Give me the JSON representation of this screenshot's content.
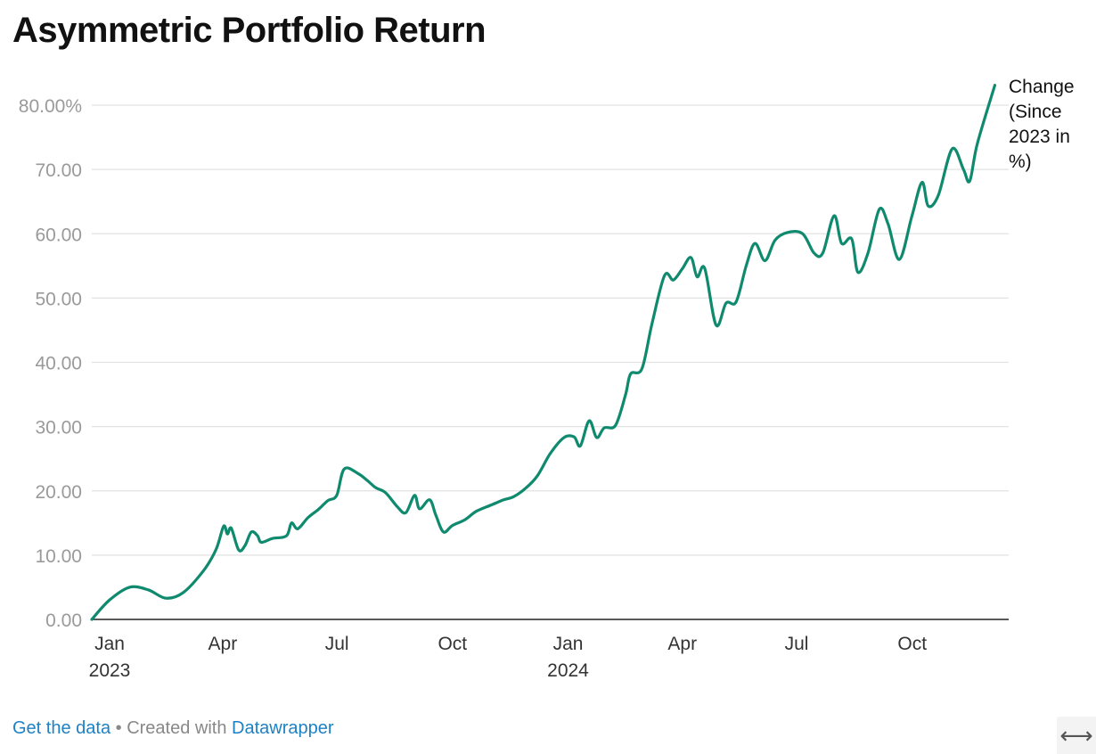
{
  "chart_data": {
    "type": "line",
    "title": "Asymmetric Portfolio Return",
    "ylim": [
      0,
      80
    ],
    "yticks": [
      0,
      10,
      20,
      30,
      40,
      50,
      60,
      70,
      80
    ],
    "ytick_labels": [
      "0.00",
      "10.00",
      "20.00",
      "30.00",
      "40.00",
      "50.00",
      "60.00",
      "70.00",
      "80.00%"
    ],
    "xlim": [
      "2023-01-01",
      "2024-12-31"
    ],
    "xticks": [
      {
        "date": "2023-01-01",
        "label": "Jan",
        "sublabel": "2023"
      },
      {
        "date": "2023-04-01",
        "label": "Apr",
        "sublabel": ""
      },
      {
        "date": "2023-07-01",
        "label": "Jul",
        "sublabel": ""
      },
      {
        "date": "2023-10-01",
        "label": "Oct",
        "sublabel": ""
      },
      {
        "date": "2024-01-01",
        "label": "Jan",
        "sublabel": "2024"
      },
      {
        "date": "2024-04-01",
        "label": "Apr",
        "sublabel": ""
      },
      {
        "date": "2024-07-01",
        "label": "Jul",
        "sublabel": ""
      },
      {
        "date": "2024-10-01",
        "label": "Oct",
        "sublabel": ""
      }
    ],
    "grid": true,
    "colors": {
      "line": "#0f8a6e",
      "grid": "#e2e2e2",
      "axis": "#222222"
    },
    "series": [
      {
        "name": "Change (Since 2023 in %)",
        "label_lines": [
          "Change",
          "(Since",
          "2023 in",
          "%)"
        ],
        "points": [
          [
            "2023-01-01",
            0.0
          ],
          [
            "2023-01-15",
            3.0
          ],
          [
            "2023-01-31",
            5.0
          ],
          [
            "2023-02-15",
            4.6
          ],
          [
            "2023-03-01",
            3.3
          ],
          [
            "2023-03-15",
            4.2
          ],
          [
            "2023-03-31",
            7.6
          ],
          [
            "2023-04-10",
            10.9
          ],
          [
            "2023-04-16",
            14.5
          ],
          [
            "2023-04-19",
            13.3
          ],
          [
            "2023-04-22",
            14.2
          ],
          [
            "2023-04-28",
            10.8
          ],
          [
            "2023-05-03",
            11.5
          ],
          [
            "2023-05-08",
            13.6
          ],
          [
            "2023-05-13",
            13.0
          ],
          [
            "2023-05-16",
            12.0
          ],
          [
            "2023-05-25",
            12.6
          ],
          [
            "2023-06-05",
            13.0
          ],
          [
            "2023-06-09",
            15.0
          ],
          [
            "2023-06-14",
            14.1
          ],
          [
            "2023-06-22",
            15.8
          ],
          [
            "2023-07-01",
            17.2
          ],
          [
            "2023-07-08",
            18.5
          ],
          [
            "2023-07-15",
            19.3
          ],
          [
            "2023-07-21",
            23.4
          ],
          [
            "2023-08-01",
            22.7
          ],
          [
            "2023-08-09",
            21.5
          ],
          [
            "2023-08-15",
            20.5
          ],
          [
            "2023-08-23",
            19.7
          ],
          [
            "2023-09-01",
            17.6
          ],
          [
            "2023-09-08",
            16.6
          ],
          [
            "2023-09-15",
            19.3
          ],
          [
            "2023-09-19",
            17.2
          ],
          [
            "2023-09-27",
            18.6
          ],
          [
            "2023-10-02",
            16.2
          ],
          [
            "2023-10-08",
            13.6
          ],
          [
            "2023-10-15",
            14.6
          ],
          [
            "2023-10-25",
            15.5
          ],
          [
            "2023-11-03",
            16.8
          ],
          [
            "2023-11-15",
            17.8
          ],
          [
            "2023-11-25",
            18.6
          ],
          [
            "2023-12-03",
            19.1
          ],
          [
            "2023-12-13",
            20.5
          ],
          [
            "2023-12-22",
            22.4
          ],
          [
            "2024-01-01",
            25.8
          ],
          [
            "2024-01-12",
            28.3
          ],
          [
            "2024-01-20",
            28.4
          ],
          [
            "2024-01-25",
            27.0
          ],
          [
            "2024-02-01",
            30.9
          ],
          [
            "2024-02-07",
            28.3
          ],
          [
            "2024-02-13",
            29.8
          ],
          [
            "2024-02-22",
            30.2
          ],
          [
            "2024-03-01",
            35.0
          ],
          [
            "2024-03-05",
            38.2
          ],
          [
            "2024-03-14",
            39.0
          ],
          [
            "2024-03-22",
            46.0
          ],
          [
            "2024-04-01",
            53.5
          ],
          [
            "2024-04-08",
            52.8
          ],
          [
            "2024-04-15",
            54.5
          ],
          [
            "2024-04-22",
            56.3
          ],
          [
            "2024-04-27",
            53.3
          ],
          [
            "2024-05-03",
            54.6
          ],
          [
            "2024-05-12",
            45.8
          ],
          [
            "2024-05-20",
            49.2
          ],
          [
            "2024-05-28",
            49.4
          ],
          [
            "2024-06-05",
            55.0
          ],
          [
            "2024-06-12",
            58.5
          ],
          [
            "2024-06-20",
            55.8
          ],
          [
            "2024-06-28",
            59.0
          ],
          [
            "2024-07-08",
            60.2
          ],
          [
            "2024-07-20",
            60.0
          ],
          [
            "2024-07-29",
            57.0
          ],
          [
            "2024-08-05",
            57.0
          ],
          [
            "2024-08-14",
            62.8
          ],
          [
            "2024-08-20",
            58.5
          ],
          [
            "2024-08-28",
            59.2
          ],
          [
            "2024-09-02",
            54.0
          ],
          [
            "2024-09-10",
            57.0
          ],
          [
            "2024-09-19",
            63.8
          ],
          [
            "2024-09-26",
            61.5
          ],
          [
            "2024-10-05",
            56.0
          ],
          [
            "2024-10-15",
            62.8
          ],
          [
            "2024-10-23",
            68.0
          ],
          [
            "2024-10-28",
            64.3
          ],
          [
            "2024-11-05",
            66.0
          ],
          [
            "2024-11-16",
            73.2
          ],
          [
            "2024-11-25",
            70.0
          ],
          [
            "2024-11-30",
            68.2
          ],
          [
            "2024-12-06",
            74.0
          ],
          [
            "2024-12-20",
            83.1
          ]
        ]
      }
    ]
  },
  "footer": {
    "get_data": "Get the data",
    "separator": " • Created with ",
    "datawrapper": "Datawrapper"
  },
  "expand_glyph": "⟷"
}
